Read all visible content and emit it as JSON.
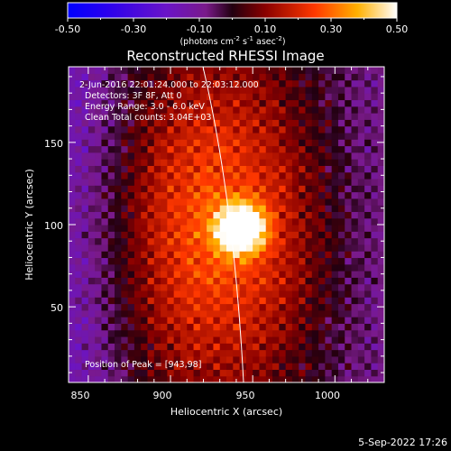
{
  "colorbar": {
    "ticks": [
      "-0.50",
      "-0.30",
      "-0.10",
      "0.10",
      "0.30",
      "0.50"
    ],
    "units_label": "(photons cm",
    "units_sup1": "-2",
    "units_mid": " s",
    "units_sup2": "-1",
    "units_tail": " asec",
    "units_sup3": "-2",
    "units_end": ")"
  },
  "chart_data": {
    "type": "heatmap",
    "title": "Reconstructed RHESSI Image",
    "xlabel": "Heliocentric X (arcsec)",
    "ylabel": "Heliocentric Y (arcsec)",
    "xlim": [
      838,
      1030
    ],
    "ylim": [
      4,
      196
    ],
    "xticks": [
      "850",
      "900",
      "950",
      "1000"
    ],
    "yticks": [
      "50",
      "100",
      "150"
    ],
    "colorscale_range": [
      -0.5,
      0.5
    ],
    "peak": [
      943,
      98
    ],
    "annotations": [
      "2-Jun-2016 22:01:24.000 to 22:03:12.000",
      "Detectors: 3F 8F, Att 0",
      "Energy Range: 3.0 - 6.0 keV",
      "Clean    Total counts: 3.04E+03",
      "Position of Peak = [943,98]"
    ]
  },
  "footer": {
    "timestamp": "5-Sep-2022 17:26"
  }
}
